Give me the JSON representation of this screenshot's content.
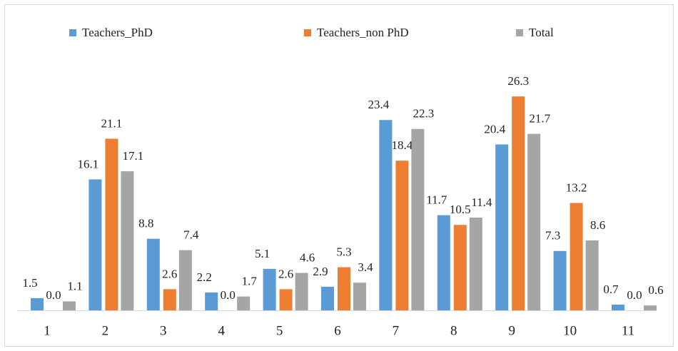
{
  "chart_data": {
    "type": "bar",
    "categories": [
      "1",
      "2",
      "3",
      "4",
      "5",
      "6",
      "7",
      "8",
      "9",
      "10",
      "11"
    ],
    "series": [
      {
        "name": "Teachers_PhD",
        "color": "#5b9bd5",
        "values": [
          1.5,
          16.1,
          8.8,
          2.2,
          5.1,
          2.9,
          23.4,
          11.7,
          20.4,
          7.3,
          0.7
        ],
        "value_labels": [
          "1.5",
          "16.1",
          "8.8",
          "2.2",
          "5.1",
          "2.9",
          "23.4",
          "11.7",
          "20.4",
          "7.3",
          "0.7"
        ]
      },
      {
        "name": "Teachers_non PhD",
        "color": "#ed7d31",
        "values": [
          0,
          21.1,
          2.6,
          0,
          2.6,
          5.3,
          18.4,
          10.5,
          26.3,
          13.2,
          0
        ],
        "value_labels": [
          "0.0",
          "21.1",
          "2.6",
          "0.0",
          "2.6",
          "5.3",
          "18.4",
          "10.5",
          "26.3",
          "13.2",
          "0.0"
        ]
      },
      {
        "name": "Total",
        "color": "#a5a5a5",
        "values": [
          1.1,
          17.1,
          7.4,
          1.7,
          4.6,
          3.4,
          22.3,
          11.4,
          21.7,
          8.6,
          0.6
        ],
        "value_labels": [
          "1.1",
          "17.1",
          "7.4",
          "1.7",
          "4.6",
          "3.4",
          "22.3",
          "11.4",
          "21.7",
          "8.6",
          "0.6"
        ]
      }
    ],
    "legend": "top"
  }
}
